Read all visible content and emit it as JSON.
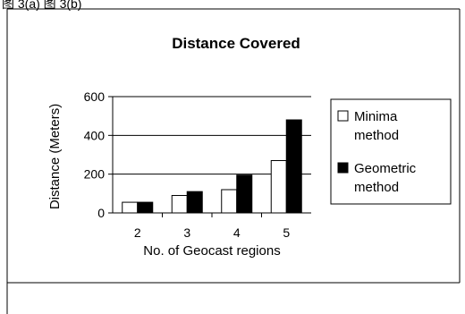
{
  "top_caption": "图 3(a)     图 3(b)",
  "chart_data": {
    "type": "bar",
    "title": "Distance Covered",
    "xlabel": "No. of Geocast regions",
    "ylabel": "Distance (Meters)",
    "ylim": [
      0,
      600
    ],
    "yticks": [
      "0",
      "200",
      "400",
      "600"
    ],
    "categories": [
      "2",
      "3",
      "4",
      "5"
    ],
    "series": [
      {
        "name": "Minima method",
        "legend_lines": [
          "Minima",
          "method"
        ],
        "color": "#ffffff",
        "values": [
          55,
          90,
          120,
          270
        ]
      },
      {
        "name": "Geometric method",
        "legend_lines": [
          "Geometric",
          "method"
        ],
        "color": "#000000",
        "values": [
          55,
          110,
          195,
          480
        ]
      }
    ],
    "grid": true,
    "legend": "right"
  }
}
